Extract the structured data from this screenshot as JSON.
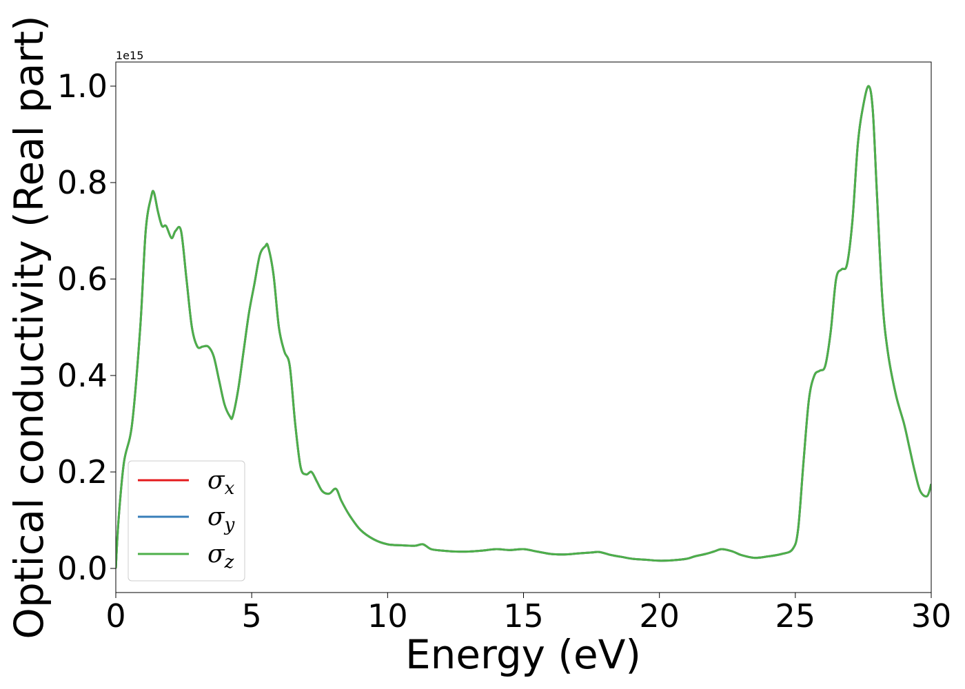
{
  "chart_data": {
    "type": "line",
    "title": "",
    "xlabel": "Energy (eV)",
    "ylabel": "Optical conductivity (Real part)",
    "y_offset_label": "1e15",
    "xlim": [
      0,
      30
    ],
    "ylim": [
      -0.05,
      1.05
    ],
    "x_ticks": [
      0,
      5,
      10,
      15,
      20,
      25,
      30
    ],
    "x_tick_labels": [
      "0",
      "5",
      "10",
      "15",
      "20",
      "25",
      "30"
    ],
    "y_ticks": [
      0.0,
      0.2,
      0.4,
      0.6,
      0.8,
      1.0
    ],
    "y_tick_labels": [
      "0.0",
      "0.2",
      "0.4",
      "0.6",
      "0.8",
      "1.0"
    ],
    "grid": false,
    "legend_position": "lower-left",
    "x": [
      0,
      0.1,
      0.3,
      0.6,
      0.9,
      1.1,
      1.3,
      1.4,
      1.55,
      1.7,
      1.85,
      2.05,
      2.2,
      2.4,
      2.6,
      2.8,
      3.0,
      3.2,
      3.4,
      3.6,
      3.8,
      4.0,
      4.2,
      4.3,
      4.5,
      4.7,
      4.9,
      5.1,
      5.3,
      5.5,
      5.6,
      5.8,
      6.0,
      6.2,
      6.4,
      6.6,
      6.8,
      7.0,
      7.2,
      7.4,
      7.6,
      7.85,
      8.1,
      8.3,
      8.6,
      9.0,
      9.5,
      10.0,
      10.5,
      11.0,
      11.3,
      11.6,
      12.0,
      12.5,
      13.0,
      13.5,
      14.0,
      14.5,
      15.0,
      15.5,
      16.0,
      16.5,
      17.0,
      17.5,
      17.8,
      18.2,
      18.6,
      19.0,
      19.5,
      20.0,
      20.5,
      21.0,
      21.3,
      21.7,
      22.0,
      22.3,
      22.7,
      23.0,
      23.5,
      24.0,
      24.5,
      24.9,
      25.1,
      25.3,
      25.5,
      25.7,
      25.9,
      26.1,
      26.3,
      26.5,
      26.7,
      26.9,
      27.1,
      27.3,
      27.5,
      27.7,
      27.85,
      28.0,
      28.2,
      28.4,
      28.7,
      29.0,
      29.2,
      29.4,
      29.6,
      29.85,
      30.0
    ],
    "series": [
      {
        "name": "σx",
        "label_base": "σ",
        "label_sub": "x",
        "color": "#e41a1c"
      },
      {
        "name": "σy",
        "label_base": "σ",
        "label_sub": "y",
        "color": "#377eb8"
      },
      {
        "name": "σz",
        "label_base": "σ",
        "label_sub": "z",
        "color": "#4daf4a"
      }
    ],
    "values": [
      0.0,
      0.1,
      0.22,
      0.3,
      0.5,
      0.7,
      0.77,
      0.78,
      0.74,
      0.71,
      0.71,
      0.685,
      0.7,
      0.7,
      0.6,
      0.5,
      0.46,
      0.46,
      0.46,
      0.44,
      0.39,
      0.34,
      0.315,
      0.315,
      0.37,
      0.45,
      0.53,
      0.59,
      0.65,
      0.668,
      0.668,
      0.61,
      0.5,
      0.45,
      0.42,
      0.3,
      0.21,
      0.195,
      0.2,
      0.18,
      0.16,
      0.155,
      0.165,
      0.14,
      0.11,
      0.08,
      0.06,
      0.05,
      0.048,
      0.047,
      0.05,
      0.04,
      0.037,
      0.035,
      0.035,
      0.037,
      0.04,
      0.038,
      0.04,
      0.035,
      0.03,
      0.029,
      0.031,
      0.033,
      0.034,
      0.028,
      0.024,
      0.02,
      0.018,
      0.016,
      0.017,
      0.02,
      0.025,
      0.03,
      0.035,
      0.04,
      0.035,
      0.028,
      0.022,
      0.025,
      0.03,
      0.04,
      0.08,
      0.22,
      0.35,
      0.4,
      0.41,
      0.42,
      0.49,
      0.6,
      0.62,
      0.63,
      0.72,
      0.88,
      0.96,
      1.0,
      0.95,
      0.78,
      0.56,
      0.45,
      0.36,
      0.3,
      0.25,
      0.2,
      0.16,
      0.15,
      0.175
    ]
  }
}
